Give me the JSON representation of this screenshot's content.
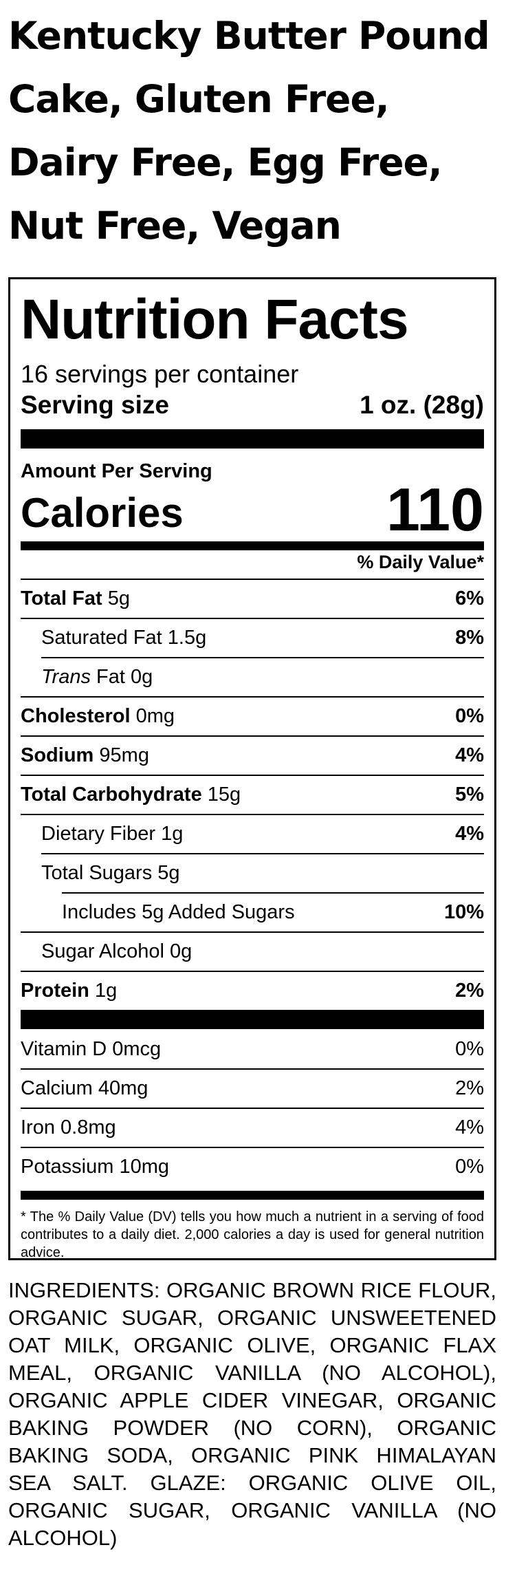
{
  "title": "Kentucky Butter Pound Cake, Gluten Free, Dairy Free, Egg Free, Nut Free, Vegan",
  "label": {
    "heading": "Nutrition Facts",
    "servings_per_container": "16 servings per container",
    "serving_size_label": "Serving size",
    "serving_size_value": "1 oz. (28g)",
    "amount_per_serving": "Amount Per Serving",
    "calories_label": "Calories",
    "calories_value": "110",
    "daily_value_header": "% Daily Value*",
    "nutrients": [
      {
        "name": "Total Fat",
        "amount": "5g",
        "dv": "6%"
      },
      {
        "name": "Saturated Fat",
        "amount": "1.5g",
        "dv": "8%"
      },
      {
        "name_italic": "Trans",
        "name": "Fat",
        "amount": "0g",
        "dv": ""
      },
      {
        "name": "Cholesterol",
        "amount": "0mg",
        "dv": "0%"
      },
      {
        "name": "Sodium",
        "amount": "95mg",
        "dv": "4%"
      },
      {
        "name": "Total Carbohydrate",
        "amount": "15g",
        "dv": "5%"
      },
      {
        "name": "Dietary Fiber",
        "amount": "1g",
        "dv": "4%"
      },
      {
        "name": "Total Sugars",
        "amount": "5g",
        "dv": ""
      },
      {
        "name": "Includes 5g Added Sugars",
        "amount": "",
        "dv": "10%"
      },
      {
        "name": "Sugar Alcohol",
        "amount": "0g",
        "dv": ""
      },
      {
        "name": "Protein",
        "amount": "1g",
        "dv": "2%"
      }
    ],
    "vitamins": [
      {
        "name": "Vitamin D",
        "amount": "0mcg",
        "dv": "0%"
      },
      {
        "name": "Calcium",
        "amount": "40mg",
        "dv": "2%"
      },
      {
        "name": "Iron",
        "amount": "0.8mg",
        "dv": "4%"
      },
      {
        "name": "Potassium",
        "amount": "10mg",
        "dv": "0%"
      }
    ],
    "footnote": "* The % Daily Value (DV) tells you how much a nutrient in a serving of food contributes to a daily diet. 2,000 calories a day is used for general nutrition advice."
  },
  "ingredients": "INGREDIENTS: ORGANIC BROWN RICE FLOUR, ORGANIC SUGAR, ORGANIC UNSWEETENED OAT MILK, ORGANIC OLIVE, ORGANIC FLAX MEAL, ORGANIC VANILLA (NO ALCOHOL), ORGANIC APPLE CIDER VINEGAR, ORGANIC BAKING POWDER (NO CORN), ORGANIC BAKING SODA, ORGANIC PINK HIMALAYAN SEA SALT. GLAZE: ORGANIC OLIVE OIL, ORGANIC SUGAR, ORGANIC VANILLA (NO ALCOHOL)"
}
